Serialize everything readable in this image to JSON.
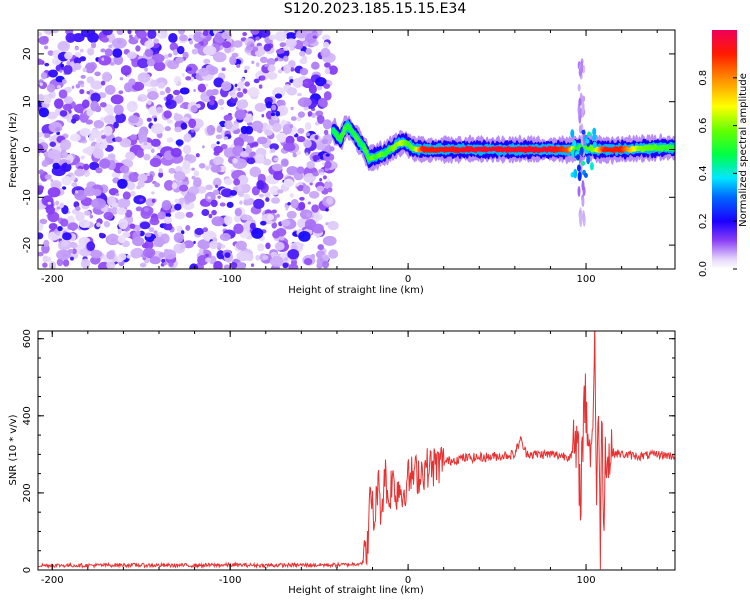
{
  "title": "S120.2023.185.15.15.E34",
  "chart_data": [
    {
      "type": "heatmap",
      "xlabel": "Height of straight line (km)",
      "ylabel": "Frequency (Hz)",
      "xlim": [
        -208,
        150
      ],
      "ylim": [
        -25,
        25
      ],
      "xticks": [
        "-200",
        "-100",
        "0",
        "100"
      ],
      "xtick_values": [
        -200,
        -100,
        0,
        100
      ],
      "yticks": [
        "-20",
        "-10",
        "0",
        "10",
        "20"
      ],
      "ytick_values": [
        -20,
        -10,
        0,
        10,
        20
      ],
      "colorbar": {
        "label": "Normalized spectral amplitude",
        "ticks": [
          "0.0",
          "0.2",
          "0.4",
          "0.6",
          "0.8"
        ],
        "tick_values": [
          0.0,
          0.2,
          0.4,
          0.6,
          0.8
        ],
        "range": [
          0,
          1
        ]
      },
      "ridge": {
        "x": [
          -42,
          -40,
          -38,
          -36,
          -34,
          -32,
          -30,
          -28,
          -26,
          -24,
          -22,
          -20,
          -18,
          -16,
          -14,
          -12,
          -10,
          -8,
          -6,
          -4,
          -2,
          0,
          2,
          4,
          8,
          20,
          40,
          60,
          80,
          90,
          95,
          100,
          105,
          110,
          120,
          130,
          140,
          150
        ],
        "freq": [
          4,
          3,
          2,
          4,
          5,
          4,
          3,
          2,
          1,
          0,
          -2,
          -1.5,
          -1.5,
          -1,
          -1,
          -0.5,
          0,
          0.5,
          1,
          1.5,
          1.5,
          1,
          0.5,
          0.2,
          0,
          0,
          0,
          0,
          0,
          0,
          0.3,
          0.5,
          0,
          0,
          0,
          0.2,
          0.3,
          0.4
        ],
        "amplitude": [
          0.45,
          0.5,
          0.5,
          0.55,
          0.5,
          0.5,
          0.5,
          0.55,
          0.45,
          0.55,
          0.5,
          0.6,
          0.5,
          0.6,
          0.55,
          0.5,
          0.55,
          0.6,
          0.6,
          0.65,
          0.6,
          0.55,
          0.55,
          0.6,
          0.9,
          0.92,
          0.95,
          0.95,
          0.95,
          0.85,
          0.5,
          0.55,
          0.6,
          0.9,
          0.9,
          0.6,
          0.55,
          0.5
        ]
      },
      "noise_region_x": [
        -208,
        -42
      ]
    },
    {
      "type": "line",
      "xlabel": "Height of straight line (km)",
      "ylabel": "SNR (10 * v/v)",
      "xlim": [
        -208,
        150
      ],
      "ylim": [
        0,
        620
      ],
      "xticks": [
        "-200",
        "-100",
        "0",
        "100"
      ],
      "xtick_values": [
        -200,
        -100,
        0,
        100
      ],
      "yticks": [
        "0",
        "200",
        "400",
        "600"
      ],
      "ytick_values": [
        0,
        200,
        400,
        600
      ],
      "color": "#e83232",
      "series": [
        {
          "x": [
            -208,
            -200,
            -180,
            -160,
            -140,
            -120,
            -100,
            -80,
            -60,
            -40,
            -30,
            -25,
            -23,
            -21,
            -19,
            -17,
            -15,
            -13,
            -11,
            -9,
            -7,
            -5,
            -3,
            -1,
            2,
            6,
            10,
            15,
            20,
            25,
            30,
            40,
            50,
            60,
            63,
            66,
            70,
            80,
            90,
            95,
            97,
            99,
            101,
            103,
            105,
            106,
            107,
            108,
            109,
            110,
            111,
            112,
            113,
            115,
            120,
            130,
            140,
            150
          ],
          "y": [
            12,
            12,
            12,
            13,
            12,
            12,
            13,
            12,
            13,
            13,
            15,
            20,
            60,
            200,
            120,
            230,
            150,
            260,
            170,
            240,
            200,
            220,
            190,
            230,
            245,
            250,
            265,
            270,
            280,
            285,
            290,
            292,
            295,
            300,
            340,
            305,
            300,
            300,
            295,
            310,
            200,
            450,
            380,
            280,
            620,
            100,
            480,
            50,
            420,
            120,
            360,
            250,
            300,
            305,
            300,
            295,
            300,
            295
          ]
        }
      ]
    }
  ]
}
